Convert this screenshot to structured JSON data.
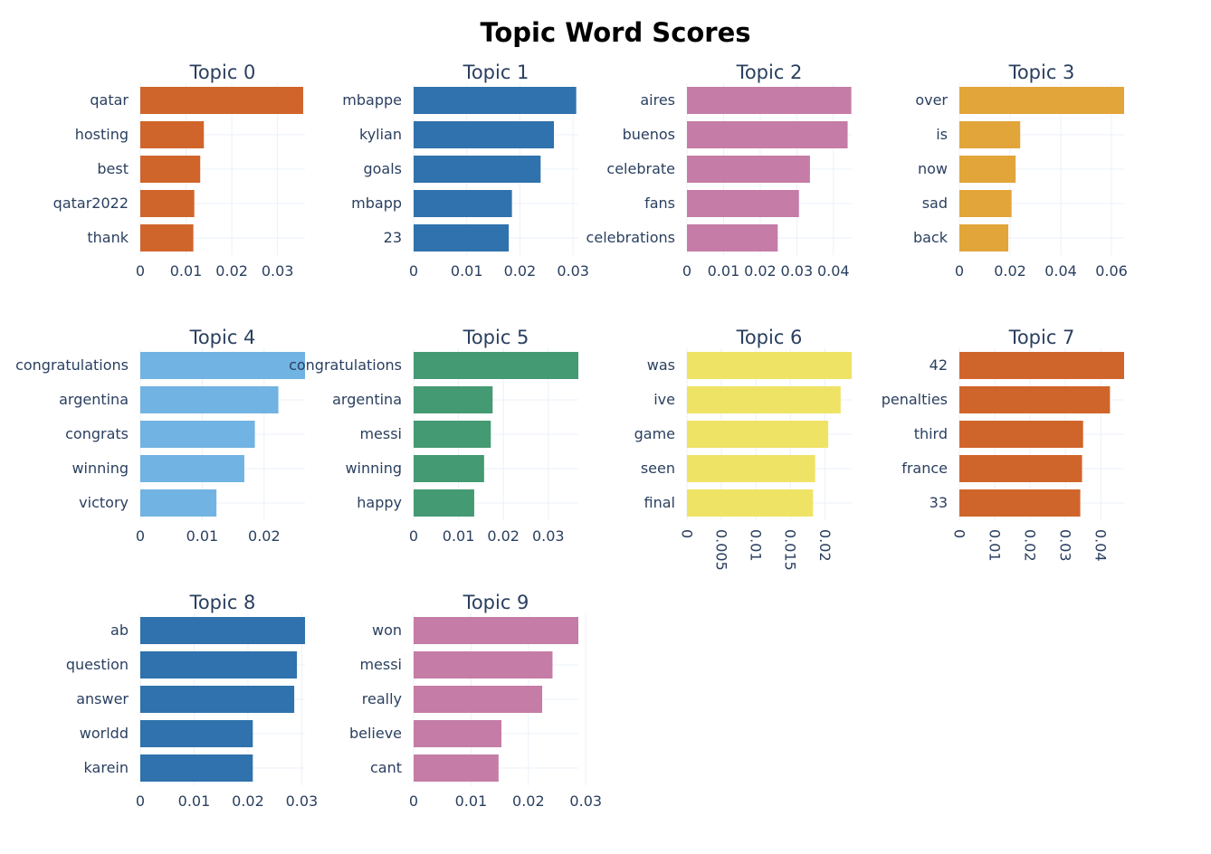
{
  "chart_data": {
    "type": "bar",
    "orientation": "horizontal",
    "title": "Topic Word Scores",
    "grid": true,
    "subplots": [
      {
        "title": "Topic 0",
        "color": "#D0652B",
        "categories": [
          "qatar",
          "hosting",
          "best",
          "qatar2022",
          "thank"
        ],
        "values": [
          0.0356,
          0.0139,
          0.0131,
          0.0118,
          0.0116
        ],
        "xlim": [
          0,
          0.036
        ],
        "ticks": [
          0,
          0.01,
          0.02,
          0.03
        ],
        "tick_labels": [
          "0",
          "0.01",
          "0.02",
          "0.03"
        ]
      },
      {
        "title": "Topic 1",
        "color": "#2F72AD",
        "categories": [
          "mbappe",
          "kylian",
          "goals",
          "mbapp",
          "23"
        ],
        "values": [
          0.0306,
          0.0264,
          0.0239,
          0.0185,
          0.0179
        ],
        "xlim": [
          0,
          0.031
        ],
        "ticks": [
          0,
          0.01,
          0.02,
          0.03
        ],
        "tick_labels": [
          "0",
          "0.01",
          "0.02",
          "0.03"
        ]
      },
      {
        "title": "Topic 2",
        "color": "#C57CA6",
        "categories": [
          "aires",
          "buenos",
          "celebrate",
          "fans",
          "celebrations"
        ],
        "values": [
          0.0449,
          0.0439,
          0.0336,
          0.0306,
          0.0248
        ],
        "xlim": [
          0,
          0.045
        ],
        "ticks": [
          0,
          0.01,
          0.02,
          0.03,
          0.04
        ],
        "tick_labels": [
          "0",
          "0.01",
          "0.02",
          "0.03",
          "0.04"
        ]
      },
      {
        "title": "Topic 3",
        "color": "#E2A53A",
        "categories": [
          "over",
          "is",
          "now",
          "sad",
          "back"
        ],
        "values": [
          0.0653,
          0.024,
          0.0222,
          0.0206,
          0.0193
        ],
        "xlim": [
          0,
          0.065
        ],
        "ticks": [
          0,
          0.02,
          0.04,
          0.06
        ],
        "tick_labels": [
          "0",
          "0.02",
          "0.04",
          "0.06"
        ]
      },
      {
        "title": "Topic 4",
        "color": "#71B3E2",
        "categories": [
          "congratulations",
          "argentina",
          "congrats",
          "winning",
          "victory"
        ],
        "values": [
          0.0267,
          0.0223,
          0.0185,
          0.0168,
          0.0123
        ],
        "xlim": [
          0,
          0.0266
        ],
        "ticks": [
          0,
          0.01,
          0.02
        ],
        "tick_labels": [
          "0",
          "0.01",
          "0.02"
        ]
      },
      {
        "title": "Topic 5",
        "color": "#449A73",
        "categories": [
          "congratulations",
          "argentina",
          "messi",
          "winning",
          "happy"
        ],
        "values": [
          0.0367,
          0.0176,
          0.0172,
          0.0157,
          0.0135
        ],
        "xlim": [
          0,
          0.0367
        ],
        "ticks": [
          0,
          0.01,
          0.02,
          0.03
        ],
        "tick_labels": [
          "0",
          "0.01",
          "0.02",
          "0.03"
        ]
      },
      {
        "title": "Topic 6",
        "color": "#EFE365",
        "categories": [
          "was",
          "ive",
          "game",
          "seen",
          "final"
        ],
        "values": [
          0.0239,
          0.0223,
          0.0205,
          0.0186,
          0.0183
        ],
        "xlim": [
          0,
          0.0239
        ],
        "ticks": [
          0,
          0.005,
          0.01,
          0.015,
          0.02
        ],
        "tick_labels": [
          "0",
          "0.005",
          "0.01",
          "0.015",
          "0.02"
        ],
        "rotate_ticks": true
      },
      {
        "title": "Topic 7",
        "color": "#D0652B",
        "categories": [
          "42",
          "penalties",
          "third",
          "france",
          "33"
        ],
        "values": [
          0.0466,
          0.0426,
          0.035,
          0.0347,
          0.0342
        ],
        "xlim": [
          0,
          0.0466
        ],
        "ticks": [
          0,
          0.01,
          0.02,
          0.03,
          0.04
        ],
        "tick_labels": [
          "0",
          "0.01",
          "0.02",
          "0.03",
          "0.04"
        ],
        "rotate_ticks": true
      },
      {
        "title": "Topic 8",
        "color": "#2F72AD",
        "categories": [
          "ab",
          "question",
          "answer",
          "worldd",
          "karein"
        ],
        "values": [
          0.0306,
          0.0291,
          0.0286,
          0.0209,
          0.0209
        ],
        "xlim": [
          0,
          0.0306
        ],
        "ticks": [
          0,
          0.01,
          0.02,
          0.03
        ],
        "tick_labels": [
          "0",
          "0.01",
          "0.02",
          "0.03"
        ]
      },
      {
        "title": "Topic 9",
        "color": "#C57CA6",
        "categories": [
          "won",
          "messi",
          "really",
          "believe",
          "cant"
        ],
        "values": [
          0.0287,
          0.0242,
          0.0224,
          0.0153,
          0.0148
        ],
        "xlim": [
          0,
          0.0287
        ],
        "ticks": [
          0,
          0.01,
          0.02,
          0.03
        ],
        "tick_labels": [
          "0",
          "0.01",
          "0.02",
          "0.03"
        ]
      }
    ]
  }
}
